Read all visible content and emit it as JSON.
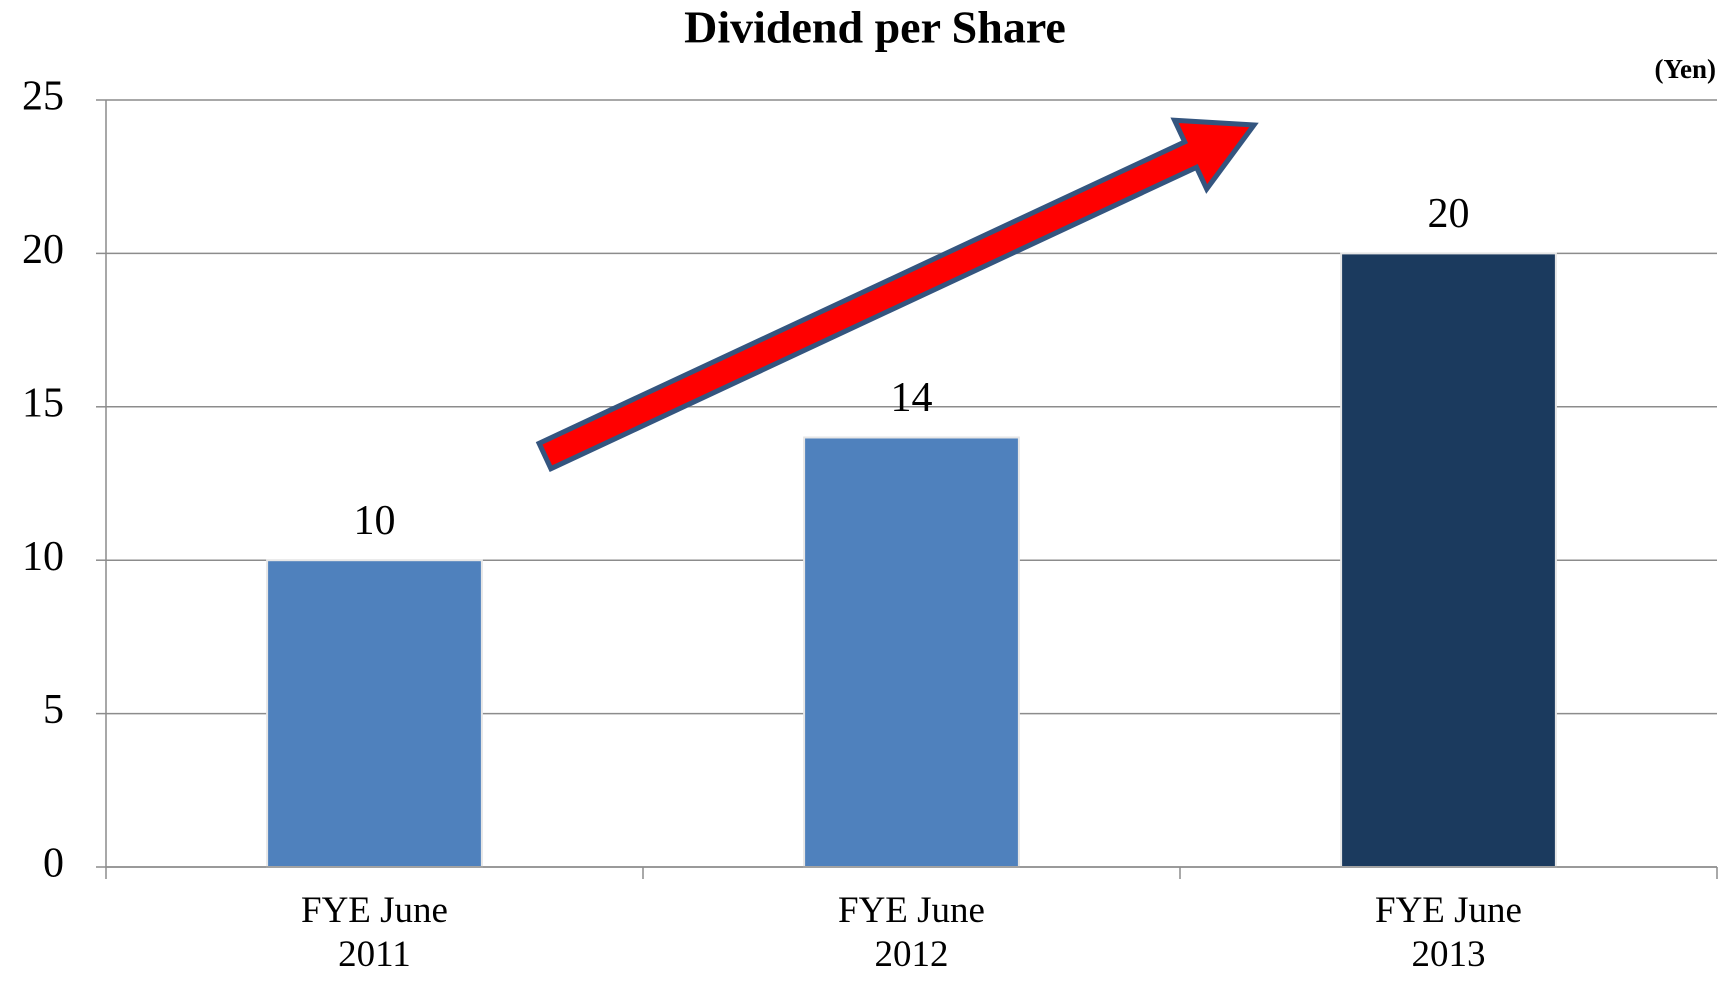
{
  "chart_data": {
    "type": "bar",
    "title": "Dividend per Share",
    "unit_label": "(Yen)",
    "categories": [
      "FYE June 2011",
      "FYE June 2012",
      "FYE June 2013"
    ],
    "values": [
      10,
      14,
      20
    ],
    "colors": [
      "#4f81bd",
      "#4f81bd",
      "#1b3a5e"
    ],
    "ylim": [
      0,
      25
    ],
    "yticks": [
      0,
      5,
      10,
      15,
      20,
      25
    ],
    "grid": true
  }
}
